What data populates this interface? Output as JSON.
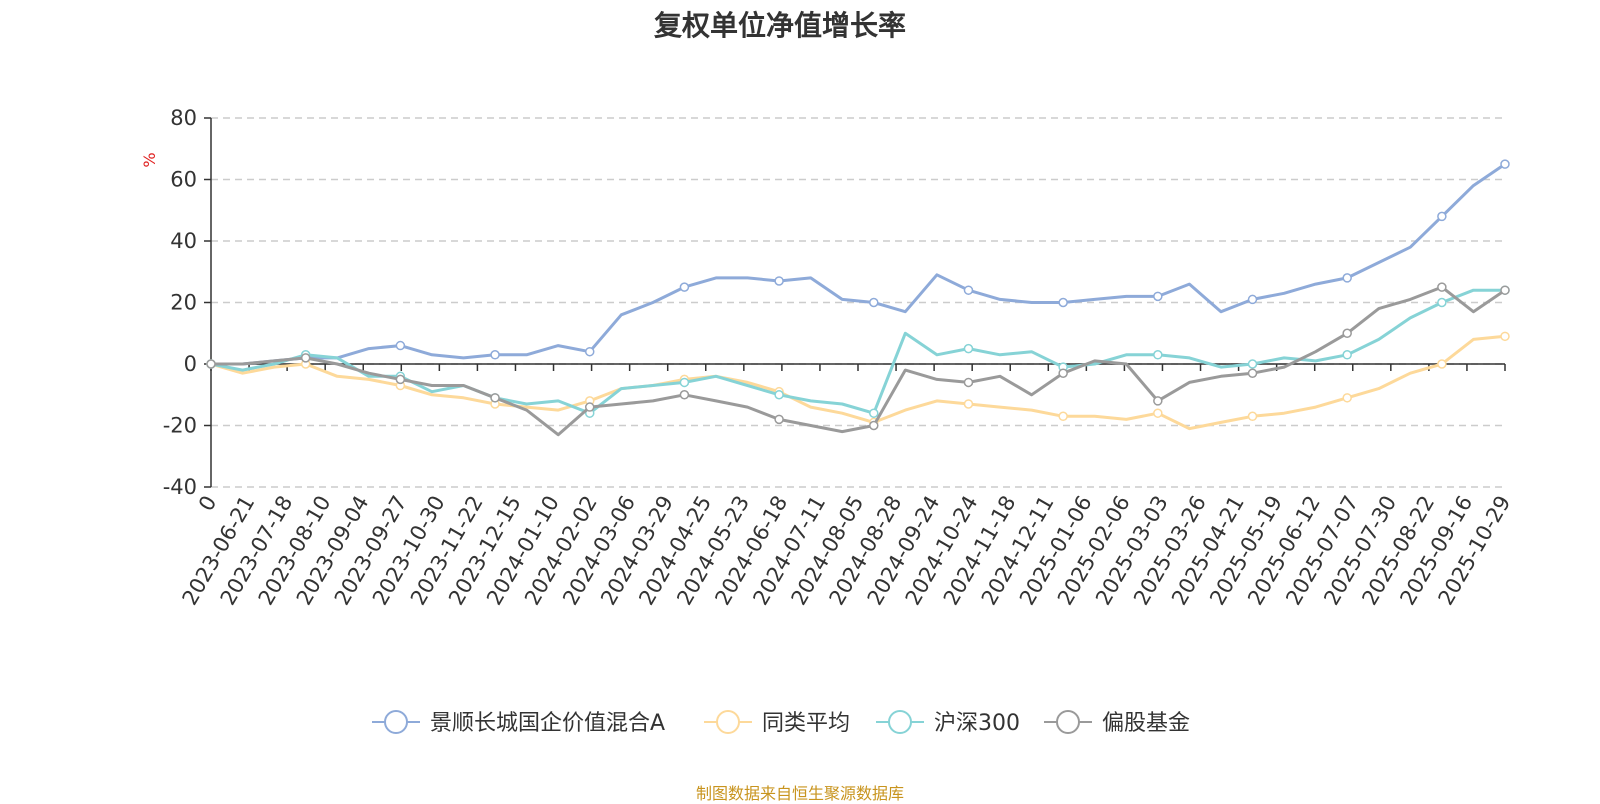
{
  "title": "复权单位净值增长率",
  "source_note": "制图数据来自恒生聚源数据库",
  "chart_data": {
    "type": "line",
    "ylabel": "%",
    "ylim": [
      -40,
      80
    ],
    "yticks": [
      80,
      60,
      40,
      20,
      0,
      -20,
      -40
    ],
    "grid": true,
    "legend_position": "bottom",
    "x_tick_labels": [
      "0",
      "2023-06-21",
      "2023-07-18",
      "2023-08-10",
      "2023-09-04",
      "2023-09-27",
      "2023-10-30",
      "2023-11-22",
      "2023-12-15",
      "2024-01-10",
      "2024-02-02",
      "2024-03-06",
      "2024-03-29",
      "2024-04-25",
      "2024-05-23",
      "2024-06-18",
      "2024-07-11",
      "2024-08-05",
      "2024-08-28",
      "2024-09-24",
      "2024-10-24",
      "2024-11-18",
      "2024-12-11",
      "2025-01-06",
      "2025-02-06",
      "2025-03-03",
      "2025-03-26",
      "2025-04-21",
      "2025-05-19",
      "2025-06-12",
      "2025-07-07",
      "2025-07-30",
      "2025-08-22",
      "2025-09-16",
      "2025-10-29"
    ],
    "series": [
      {
        "name": "景顺长城国企价值混合A",
        "color": "#8eaad9",
        "values": [
          0,
          0,
          1,
          2,
          2,
          5,
          6,
          3,
          2,
          3,
          3,
          6,
          4,
          16,
          20,
          25,
          28,
          28,
          27,
          28,
          21,
          20,
          17,
          29,
          24,
          21,
          20,
          20,
          21,
          22,
          22,
          26,
          17,
          21,
          23,
          26,
          28,
          33,
          38,
          48,
          58,
          65
        ]
      },
      {
        "name": "同类平均",
        "color": "#fdd99a",
        "values": [
          0,
          -3,
          -1,
          0,
          -4,
          -5,
          -7,
          -10,
          -11,
          -13,
          -14,
          -15,
          -12,
          -8,
          -7,
          -5,
          -4,
          -6,
          -9,
          -14,
          -16,
          -19,
          -15,
          -12,
          -13,
          -14,
          -15,
          -17,
          -17,
          -18,
          -16,
          -21,
          -19,
          -17,
          -16,
          -14,
          -11,
          -8,
          -3,
          0,
          8,
          9
        ]
      },
      {
        "name": "沪深300",
        "color": "#86d3d6",
        "values": [
          0,
          -2,
          0,
          3,
          2,
          -4,
          -4,
          -9,
          -7,
          -11,
          -13,
          -12,
          -16,
          -8,
          -7,
          -6,
          -4,
          -7,
          -10,
          -12,
          -13,
          -16,
          10,
          3,
          5,
          3,
          4,
          -1,
          0,
          3,
          3,
          2,
          -1,
          0,
          2,
          1,
          3,
          8,
          15,
          20,
          24,
          24
        ]
      },
      {
        "name": "偏股基金",
        "color": "#9a9a9a",
        "values": [
          0,
          0,
          1,
          2,
          0,
          -3,
          -5,
          -7,
          -7,
          -11,
          -15,
          -23,
          -14,
          -13,
          -12,
          -10,
          -12,
          -14,
          -18,
          -20,
          -22,
          -20,
          -2,
          -5,
          -6,
          -4,
          -10,
          -3,
          1,
          0,
          -12,
          -6,
          -4,
          -3,
          -1,
          4,
          10,
          18,
          21,
          25,
          17,
          24
        ]
      }
    ]
  }
}
